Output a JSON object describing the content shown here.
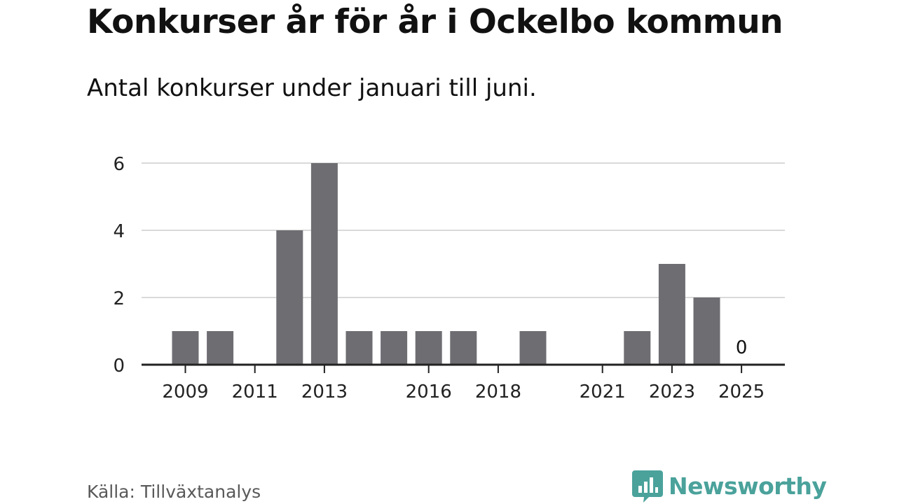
{
  "header": {
    "title": "Konkurser år för år i Ockelbo kommun",
    "subtitle": "Antal konkurser under januari till juni."
  },
  "footer": {
    "source": "Källa: Tillväxtanalys",
    "brand": "Newsworthy"
  },
  "colors": {
    "bar": "#6e6d72",
    "grid": "#d9d9d9",
    "axis": "#222222",
    "brand": "#4aa29b"
  },
  "icons": {
    "brand_logo": "newsworthy-bar-chart-icon"
  },
  "chart_data": {
    "type": "bar",
    "title": "Konkurser år för år i Ockelbo kommun",
    "subtitle": "Antal konkurser under januari till juni.",
    "categories": [
      "2009",
      "2010",
      "2011",
      "2012",
      "2013",
      "2014",
      "2015",
      "2016",
      "2017",
      "2018",
      "2019",
      "2020",
      "2021",
      "2022",
      "2023",
      "2024",
      "2025"
    ],
    "values": [
      1,
      1,
      0,
      4,
      6,
      1,
      1,
      1,
      1,
      0,
      1,
      0,
      0,
      1,
      3,
      2,
      0
    ],
    "x_tick_labels": [
      "2009",
      "2011",
      "2013",
      "2016",
      "2018",
      "2021",
      "2023",
      "2025"
    ],
    "y_ticks": [
      0,
      2,
      4,
      6
    ],
    "ylim": [
      0,
      6
    ],
    "grid": true,
    "legend": "none",
    "data_labels": [
      {
        "category": "2025",
        "text": "0"
      }
    ]
  }
}
